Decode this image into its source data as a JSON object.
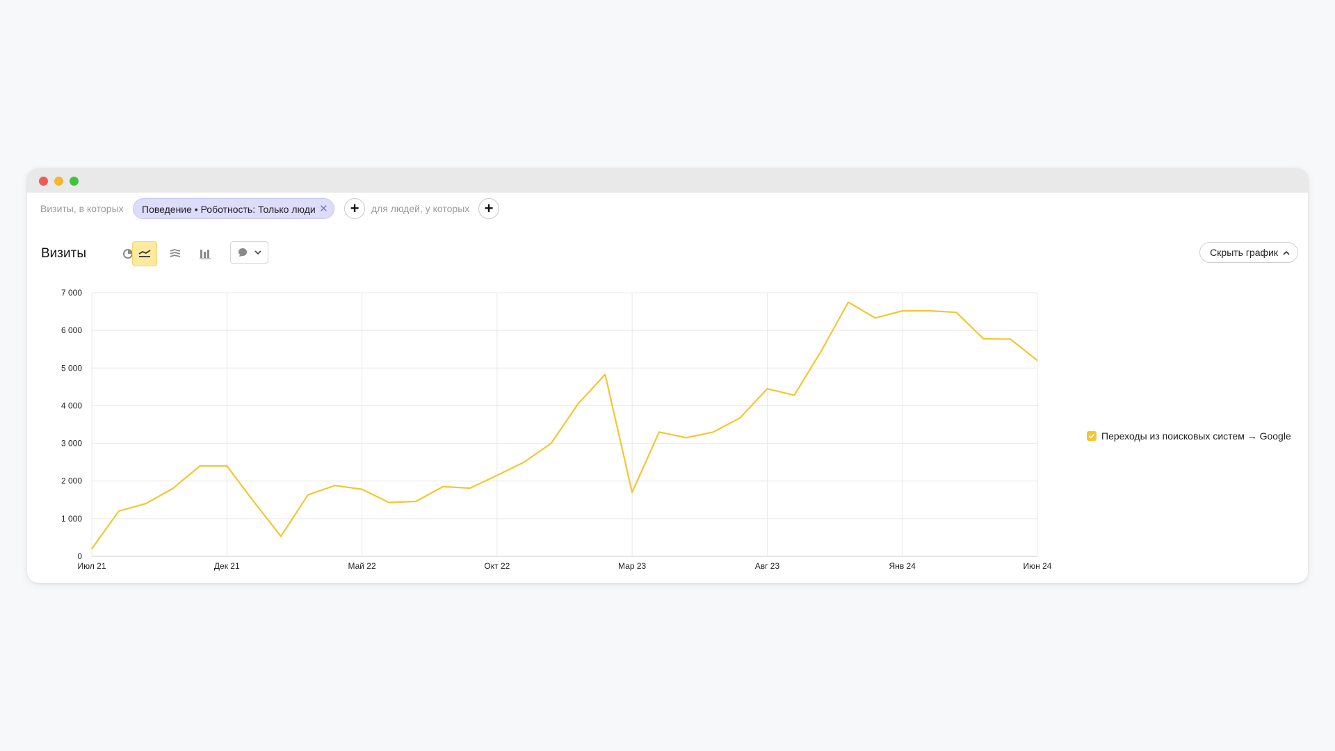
{
  "filters": {
    "visits_label": "Визиты, в которых",
    "chip_label": "Поведение • Роботность: Только люди",
    "people_label": "для людей, у которых"
  },
  "toolbar": {
    "title": "Визиты",
    "hide_button": "Скрыть график"
  },
  "icons": {
    "window_controls": [
      "close-dot",
      "minimize-dot",
      "maximize-dot"
    ],
    "chip_close": "close-icon",
    "chart_types": [
      "pie-chart-icon",
      "line-chart-icon",
      "area-chart-icon",
      "bar-chart-icon"
    ],
    "annotation": "comment-icon",
    "dropdown": "chevron-down-icon",
    "hide": "chevron-up-icon"
  },
  "colors": {
    "series": "#f5c532",
    "active_tool": "#fde9a0",
    "chip_bg": "#dcdcfb"
  },
  "legend": {
    "label": "Переходы из поисковых систем → Google",
    "checked": true
  },
  "chart_data": {
    "type": "line",
    "x_tick_labels": [
      "Июл 21",
      "Дек 21",
      "Май 22",
      "Окт 22",
      "Мар 23",
      "Авг 23",
      "Янв 24",
      "Июн 24"
    ],
    "x": [
      "2021-07",
      "2021-08",
      "2021-09",
      "2021-10",
      "2021-11",
      "2021-12",
      "2022-01",
      "2022-02",
      "2022-03",
      "2022-04",
      "2022-05",
      "2022-06",
      "2022-07",
      "2022-08",
      "2022-09",
      "2022-10",
      "2022-11",
      "2022-12",
      "2023-01",
      "2023-02",
      "2023-03",
      "2023-04",
      "2023-05",
      "2023-06",
      "2023-07",
      "2023-08",
      "2023-09",
      "2023-10",
      "2023-11",
      "2023-12",
      "2024-01",
      "2024-02",
      "2024-03",
      "2024-04",
      "2024-05",
      "2024-06"
    ],
    "series": [
      {
        "name": "Переходы из поисковых систем → Google",
        "values": [
          200,
          1200,
          1400,
          1800,
          2400,
          2400,
          1450,
          530,
          1630,
          1880,
          1780,
          1430,
          1460,
          1850,
          1810,
          2150,
          2500,
          3000,
          4050,
          4830,
          1700,
          3300,
          3150,
          3300,
          3680,
          4450,
          4280,
          5450,
          6750,
          6330,
          6520,
          6520,
          6480,
          5780,
          5770,
          5200
        ]
      }
    ],
    "y_ticks": [
      "0",
      "1 000",
      "2 000",
      "3 000",
      "4 000",
      "5 000",
      "6 000",
      "7 000"
    ],
    "ylim": [
      0,
      7000
    ],
    "grid": true,
    "legend_position": "right"
  }
}
